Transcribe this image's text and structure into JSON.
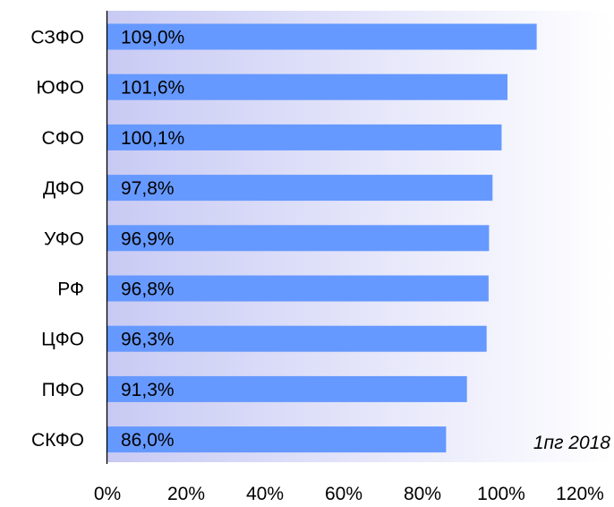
{
  "chart_data": {
    "type": "bar",
    "orientation": "horizontal",
    "categories": [
      "СЗФО",
      "ЮФО",
      "СФО",
      "ДФО",
      "УФО",
      "РФ",
      "ЦФО",
      "ПФО",
      "СКФО"
    ],
    "values": [
      109.0,
      101.6,
      100.1,
      97.8,
      96.9,
      96.8,
      96.3,
      91.3,
      86.0
    ],
    "value_labels": [
      "109,0%",
      "101,6%",
      "100,1%",
      "97,8%",
      "96,9%",
      "96,8%",
      "96,3%",
      "91,3%",
      "86,0%"
    ],
    "x_ticks": [
      "0%",
      "20%",
      "40%",
      "60%",
      "80%",
      "100%",
      "120%"
    ],
    "xlim": [
      0,
      120
    ],
    "grid": false,
    "annotation": "1пг 2018",
    "legend": "none"
  },
  "colors": {
    "bar": "#6699ff",
    "background_gradient_start": "#c8caf4",
    "background_gradient_end": "#ffffff",
    "axis": "#000000"
  }
}
